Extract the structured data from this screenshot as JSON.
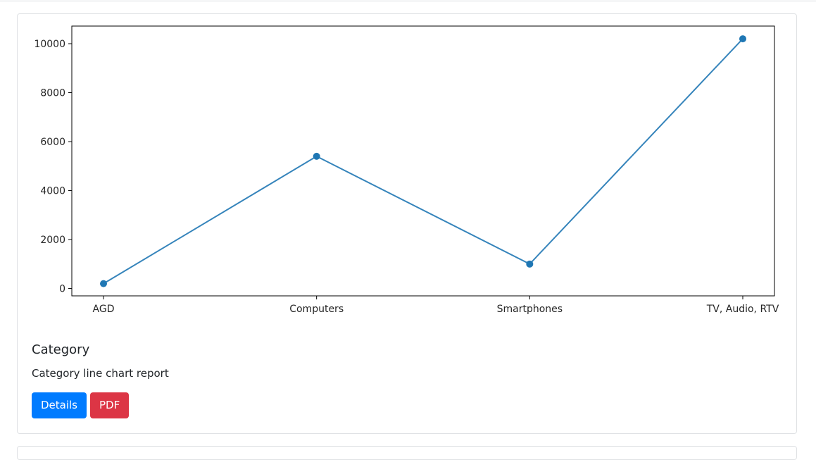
{
  "card": {
    "title": "Category",
    "text": "Category line chart report",
    "details_label": "Details",
    "pdf_label": "PDF"
  },
  "colors": {
    "line": "#1f77b4",
    "details_button": "#007bff",
    "pdf_button": "#dc3545"
  },
  "chart_data": {
    "type": "line",
    "categories": [
      "AGD",
      "Computers",
      "Smartphones",
      "TV, Audio, RTV"
    ],
    "series": [
      {
        "values": [
          200,
          5400,
          1000,
          10200
        ]
      }
    ],
    "yticks": [
      "0",
      "2000",
      "4000",
      "6000",
      "8000",
      "10000"
    ],
    "ylim": [
      -300,
      10720
    ],
    "markers": true,
    "grid": false,
    "title": "",
    "xlabel": "",
    "ylabel": ""
  }
}
